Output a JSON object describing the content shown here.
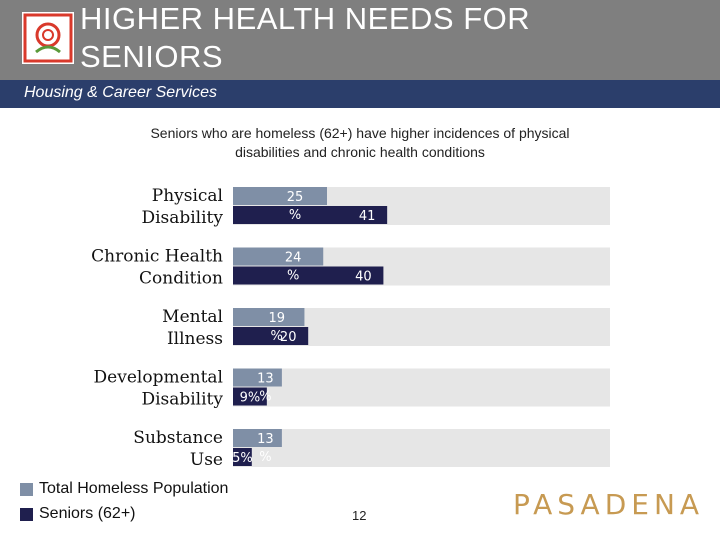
{
  "header": {
    "title_line1": "HIGHER HEALTH NEEDS FOR",
    "title_line2": "SENIORS",
    "subtitle": "Housing & Career Services"
  },
  "caption": {
    "line1": "Seniors who are homeless (62+) have higher incidences of physical",
    "line2": "disabilities and chronic health conditions"
  },
  "footer": {
    "page_number": "12",
    "brand": "PASADENA"
  },
  "colors": {
    "header": "#7f7f7f",
    "subbar": "#2b3e6b",
    "total": "#7f8fa6",
    "seniors": "#1f1f4e",
    "track": "#e6e6e6",
    "brand": "#c79a52",
    "logo": "#d9392b"
  },
  "chart_data": {
    "type": "bar",
    "orientation": "horizontal",
    "categories": [
      [
        "Physical",
        "Disability"
      ],
      [
        "Chronic Health",
        "Condition"
      ],
      [
        "Mental",
        "Illness"
      ],
      [
        "Developmental",
        "Disability"
      ],
      [
        "Substance",
        "Use"
      ]
    ],
    "series": [
      {
        "name": "Total Homeless Population",
        "values": [
          25,
          24,
          19,
          13,
          13
        ],
        "labels": [
          "25 %",
          "24 %",
          "19 %",
          "13 %",
          "13 %"
        ]
      },
      {
        "name": "Seniors (62+)",
        "values": [
          41,
          40,
          20,
          9,
          5
        ],
        "labels": [
          "41",
          "40",
          "20",
          "9%",
          "5%"
        ]
      }
    ],
    "xlim": [
      0,
      100
    ],
    "legend": "bottom-left",
    "grid": false
  }
}
